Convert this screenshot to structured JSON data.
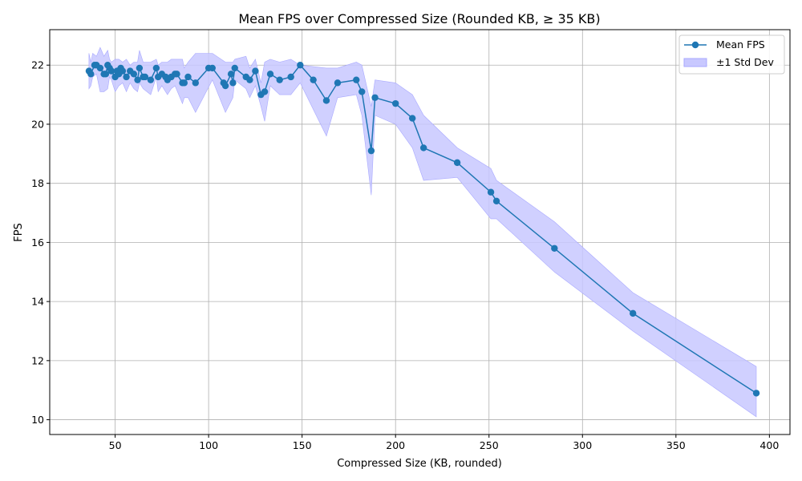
{
  "chart_data": {
    "type": "line",
    "title": "Mean FPS over Compressed Size (Rounded KB, ≥ 35 KB)",
    "xlabel": "Compressed Size (KB, rounded)",
    "ylabel": "FPS",
    "xlim": [
      15,
      411
    ],
    "ylim": [
      9.5,
      23.2
    ],
    "xticks": [
      50,
      100,
      150,
      200,
      250,
      300,
      350,
      400
    ],
    "yticks": [
      10,
      12,
      14,
      16,
      18,
      20,
      22
    ],
    "grid": true,
    "legend_position": "top-right",
    "colors": {
      "line": "#1f77b4",
      "band_fill": "#c8c8ff",
      "band_edge": "#a8a8ff"
    },
    "series": [
      {
        "name": "Mean FPS",
        "x": [
          36,
          37,
          39,
          40,
          42,
          44,
          45,
          46,
          47,
          48,
          50,
          51,
          52,
          53,
          54,
          56,
          58,
          60,
          62,
          63,
          65,
          66,
          69,
          72,
          73,
          75,
          77,
          78,
          80,
          82,
          83,
          86,
          87,
          89,
          93,
          100,
          102,
          108,
          109,
          112,
          113,
          114,
          120,
          122,
          125,
          128,
          130,
          133,
          138,
          144,
          149,
          156,
          163,
          169,
          179,
          182,
          187,
          189,
          200,
          209,
          215,
          233,
          251,
          254,
          285,
          327,
          393
        ],
        "y": [
          21.8,
          21.7,
          22.0,
          22.0,
          21.9,
          21.7,
          21.7,
          22.0,
          21.9,
          21.8,
          21.6,
          21.8,
          21.7,
          21.9,
          21.8,
          21.6,
          21.8,
          21.7,
          21.5,
          21.9,
          21.6,
          21.6,
          21.5,
          21.9,
          21.6,
          21.7,
          21.6,
          21.5,
          21.6,
          21.7,
          21.7,
          21.4,
          21.4,
          21.6,
          21.4,
          21.9,
          21.9,
          21.4,
          21.3,
          21.7,
          21.4,
          21.9,
          21.6,
          21.5,
          21.8,
          21.0,
          21.1,
          21.7,
          21.5,
          21.6,
          22.0,
          21.5,
          20.8,
          21.4,
          21.5,
          21.1,
          19.1,
          20.9,
          20.7,
          20.2,
          19.2,
          18.7,
          17.7,
          17.4,
          15.8,
          13.6,
          10.9
        ]
      },
      {
        "name": "±1 Std Dev",
        "x": [
          36,
          37,
          38,
          40,
          42,
          44,
          46,
          47,
          48,
          50,
          52,
          54,
          56,
          58,
          60,
          62,
          63,
          65,
          69,
          72,
          73,
          75,
          78,
          80,
          82,
          86,
          87,
          89,
          93,
          102,
          109,
          113,
          114,
          120,
          122,
          125,
          128,
          130,
          133,
          138,
          144,
          149,
          163,
          169,
          179,
          182,
          187,
          189,
          200,
          209,
          215,
          233,
          251,
          254,
          285,
          327,
          393
        ],
        "lower": [
          21.2,
          21.3,
          21.6,
          21.7,
          21.1,
          21.1,
          21.2,
          21.6,
          21.5,
          21.1,
          21.3,
          21.4,
          21.1,
          21.4,
          21.2,
          21.1,
          21.4,
          21.2,
          21.0,
          21.6,
          21.1,
          21.3,
          21.0,
          21.2,
          21.3,
          20.7,
          20.9,
          20.9,
          20.4,
          21.5,
          20.4,
          20.9,
          21.5,
          21.2,
          20.9,
          21.3,
          20.6,
          20.1,
          21.3,
          21.0,
          21.0,
          21.4,
          19.6,
          20.9,
          21.0,
          20.3,
          17.6,
          20.3,
          20.0,
          19.2,
          18.1,
          18.2,
          16.8,
          16.8,
          15.0,
          13.0,
          10.1
        ],
        "upper": [
          22.4,
          22.1,
          22.4,
          22.3,
          22.6,
          22.3,
          22.5,
          22.2,
          22.1,
          22.2,
          22.2,
          22.1,
          22.2,
          22.0,
          22.1,
          22.1,
          22.5,
          22.1,
          22.1,
          22.2,
          22.0,
          22.1,
          22.1,
          22.2,
          22.2,
          22.2,
          21.9,
          22.1,
          22.4,
          22.4,
          22.1,
          22.1,
          22.2,
          22.3,
          21.9,
          22.2,
          21.4,
          22.1,
          22.2,
          22.1,
          22.2,
          22.0,
          21.9,
          21.9,
          22.1,
          22.0,
          20.6,
          21.5,
          21.4,
          21.0,
          20.3,
          19.2,
          18.5,
          18.1,
          16.7,
          14.3,
          11.8
        ]
      }
    ]
  }
}
